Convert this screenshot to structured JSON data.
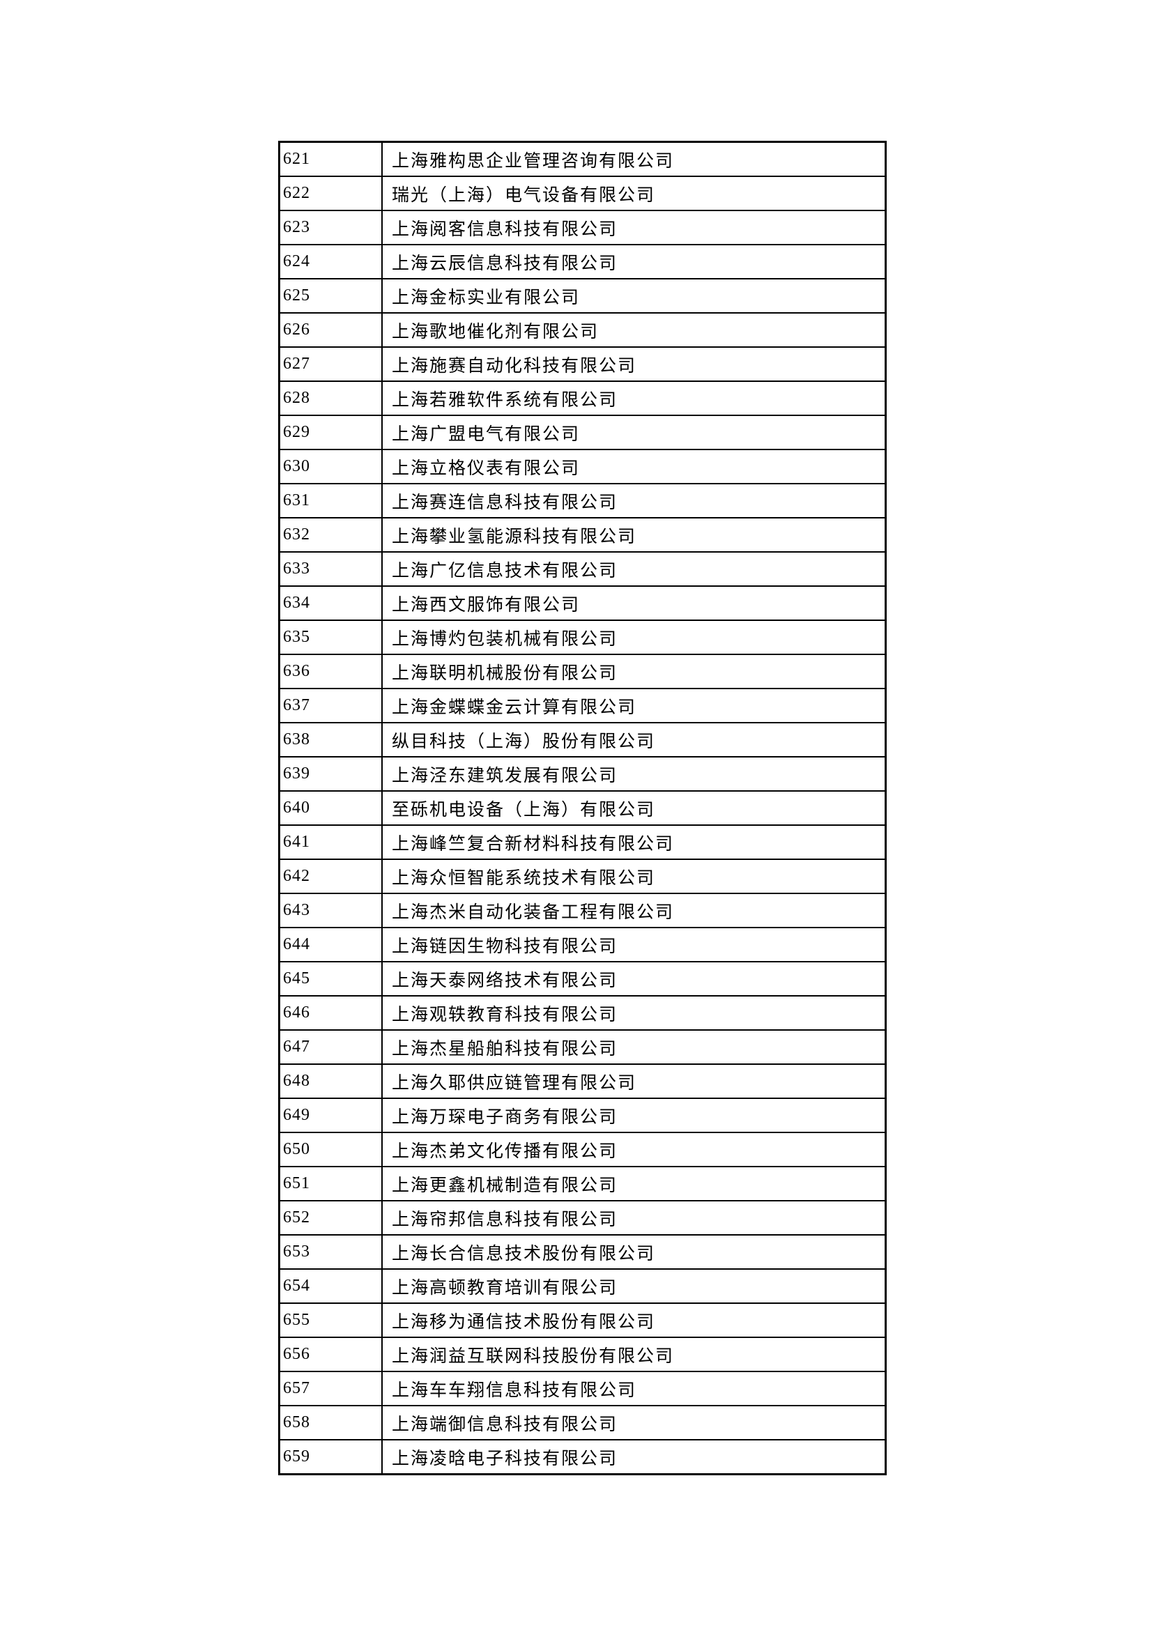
{
  "table": {
    "rows": [
      {
        "no": "621",
        "company": "上海雅构思企业管理咨询有限公司"
      },
      {
        "no": "622",
        "company": "瑞光（上海）电气设备有限公司"
      },
      {
        "no": "623",
        "company": "上海阅客信息科技有限公司"
      },
      {
        "no": "624",
        "company": "上海云辰信息科技有限公司"
      },
      {
        "no": "625",
        "company": "上海金标实业有限公司"
      },
      {
        "no": "626",
        "company": "上海歌地催化剂有限公司"
      },
      {
        "no": "627",
        "company": "上海施赛自动化科技有限公司"
      },
      {
        "no": "628",
        "company": "上海若雅软件系统有限公司"
      },
      {
        "no": "629",
        "company": "上海广盟电气有限公司"
      },
      {
        "no": "630",
        "company": "上海立格仪表有限公司"
      },
      {
        "no": "631",
        "company": "上海赛连信息科技有限公司"
      },
      {
        "no": "632",
        "company": "上海攀业氢能源科技有限公司"
      },
      {
        "no": "633",
        "company": "上海广亿信息技术有限公司"
      },
      {
        "no": "634",
        "company": "上海西文服饰有限公司"
      },
      {
        "no": "635",
        "company": "上海博灼包装机械有限公司"
      },
      {
        "no": "636",
        "company": "上海联明机械股份有限公司"
      },
      {
        "no": "637",
        "company": "上海金蝶蝶金云计算有限公司"
      },
      {
        "no": "638",
        "company": "纵目科技（上海）股份有限公司"
      },
      {
        "no": "639",
        "company": "上海泾东建筑发展有限公司"
      },
      {
        "no": "640",
        "company": "至砾机电设备（上海）有限公司"
      },
      {
        "no": "641",
        "company": "上海峰竺复合新材料科技有限公司"
      },
      {
        "no": "642",
        "company": "上海众恒智能系统技术有限公司"
      },
      {
        "no": "643",
        "company": "上海杰米自动化装备工程有限公司"
      },
      {
        "no": "644",
        "company": "上海链因生物科技有限公司"
      },
      {
        "no": "645",
        "company": "上海天泰网络技术有限公司"
      },
      {
        "no": "646",
        "company": "上海观轶教育科技有限公司"
      },
      {
        "no": "647",
        "company": "上海杰星船舶科技有限公司"
      },
      {
        "no": "648",
        "company": "上海久耶供应链管理有限公司"
      },
      {
        "no": "649",
        "company": "上海万琛电子商务有限公司"
      },
      {
        "no": "650",
        "company": "上海杰弟文化传播有限公司"
      },
      {
        "no": "651",
        "company": "上海更鑫机械制造有限公司"
      },
      {
        "no": "652",
        "company": "上海帘邦信息科技有限公司"
      },
      {
        "no": "653",
        "company": "上海长合信息技术股份有限公司"
      },
      {
        "no": "654",
        "company": "上海高顿教育培训有限公司"
      },
      {
        "no": "655",
        "company": "上海移为通信技术股份有限公司"
      },
      {
        "no": "656",
        "company": "上海润益互联网科技股份有限公司"
      },
      {
        "no": "657",
        "company": "上海车车翔信息科技有限公司"
      },
      {
        "no": "658",
        "company": "上海端御信息科技有限公司"
      },
      {
        "no": "659",
        "company": "上海凌晗电子科技有限公司"
      }
    ]
  }
}
